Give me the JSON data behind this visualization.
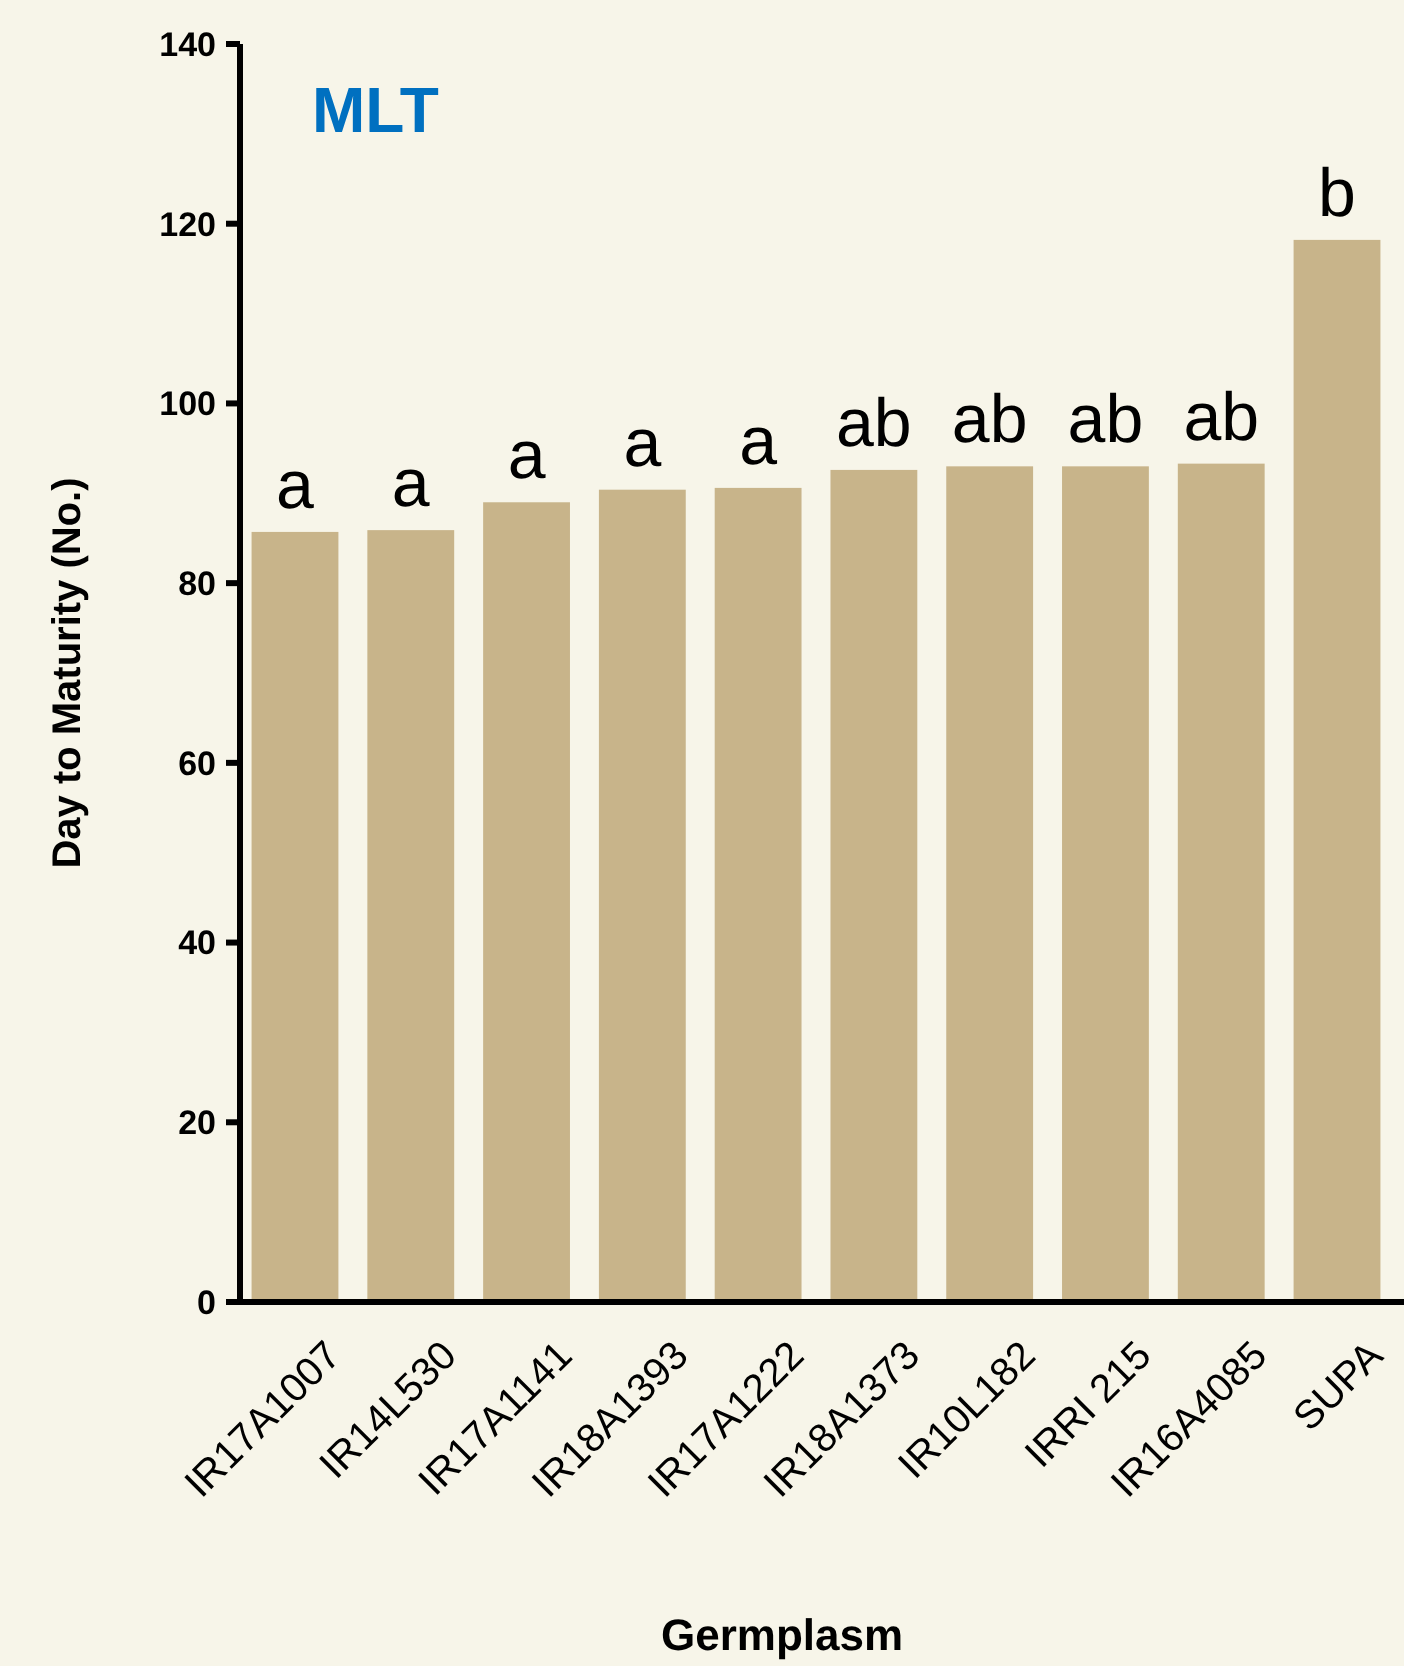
{
  "chart_data": {
    "type": "bar",
    "title": "MLT",
    "xlabel": "Germplasm",
    "ylabel": "Day to Maturity (No.)",
    "categories": [
      "IR17A1007",
      "IR14L530",
      "IR17A1141",
      "IR18A1393",
      "IR17A1222",
      "IR18A1373",
      "IR10L182",
      "IRRI 215",
      "IR16A4085",
      "SUPA"
    ],
    "values": [
      85.7,
      85.9,
      89.0,
      90.4,
      90.6,
      92.6,
      93.0,
      93.0,
      93.3,
      118.2
    ],
    "value_labels": [
      "a",
      "a",
      "a",
      "a",
      "a",
      "ab",
      "ab",
      "ab",
      "ab",
      "b"
    ],
    "color": "#c8b48a",
    "ylim": [
      0,
      140
    ],
    "yticks": [
      0,
      20,
      40,
      60,
      80,
      100,
      120,
      140
    ]
  }
}
